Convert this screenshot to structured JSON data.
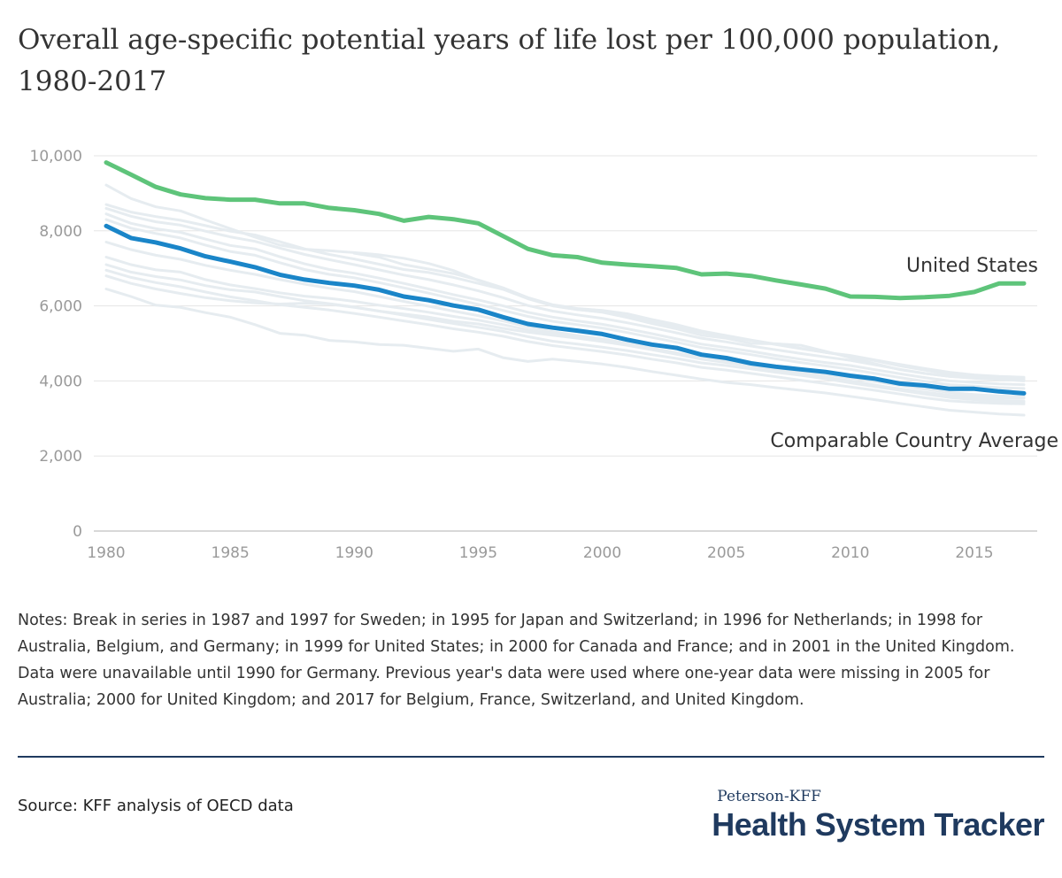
{
  "header": {
    "title": "Overall age-specific potential years of life lost per 100,000 population, 1980-2017"
  },
  "colors": {
    "us": "#5ec47a",
    "average": "#1a85c8",
    "comparable_countries": "#e6ecf0",
    "grid": "#e5e5e5",
    "axis": "#cccccc",
    "brand": "#1f3a5f"
  },
  "chart_data": {
    "type": "line",
    "x": [
      1980,
      1981,
      1982,
      1983,
      1984,
      1985,
      1986,
      1987,
      1988,
      1989,
      1990,
      1991,
      1992,
      1993,
      1994,
      1995,
      1996,
      1997,
      1998,
      1999,
      2000,
      2001,
      2002,
      2003,
      2004,
      2005,
      2006,
      2007,
      2008,
      2009,
      2010,
      2011,
      2012,
      2013,
      2014,
      2015,
      2016,
      2017
    ],
    "xlim": [
      1980,
      2017
    ],
    "x_ticks": [
      1980,
      1985,
      1990,
      1995,
      2000,
      2005,
      2010,
      2015
    ],
    "ylim": [
      0,
      10000
    ],
    "y_ticks": [
      0,
      2000,
      4000,
      6000,
      8000,
      10000
    ],
    "y_tick_labels": [
      "0",
      "2,000",
      "4,000",
      "6,000",
      "8,000",
      "10,000"
    ],
    "grid": true,
    "series": [
      {
        "name": "United States",
        "role": "highlight",
        "values": [
          9820,
          9500,
          9170,
          8970,
          8870,
          8830,
          8830,
          8730,
          8730,
          8610,
          8550,
          8450,
          8270,
          8370,
          8310,
          8200,
          7860,
          7520,
          7350,
          7300,
          7150,
          7100,
          7060,
          7010,
          6840,
          6860,
          6800,
          6680,
          6570,
          6460,
          6250,
          6240,
          6210,
          6230,
          6270,
          6370,
          6600,
          6600
        ]
      },
      {
        "name": "Comparable Country Average",
        "role": "highlight",
        "values": [
          8130,
          7810,
          7690,
          7530,
          7320,
          7180,
          7030,
          6830,
          6700,
          6610,
          6540,
          6430,
          6250,
          6150,
          6010,
          5900,
          5700,
          5520,
          5420,
          5340,
          5250,
          5100,
          4970,
          4880,
          4700,
          4610,
          4470,
          4380,
          4310,
          4240,
          4140,
          4060,
          3930,
          3880,
          3790,
          3790,
          3720,
          3670
        ]
      },
      {
        "role": "background",
        "values": [
          9220,
          8860,
          8640,
          8530,
          8290,
          8060,
          7830,
          7620,
          7510,
          7470,
          7420,
          7360,
          7270,
          7130,
          6940,
          6680,
          6470,
          6220,
          6010,
          5900,
          5830,
          5690,
          5530,
          5390,
          5220,
          5140,
          5000,
          4990,
          4950,
          4790,
          4620,
          4460,
          4300,
          4200,
          4120,
          4080,
          4050,
          4000
        ]
      },
      {
        "role": "background",
        "values": [
          8700,
          8500,
          8380,
          8280,
          8140,
          7990,
          7890,
          7710,
          7520,
          7370,
          7250,
          7110,
          6970,
          6890,
          6760,
          6600,
          6440,
          6190,
          6000,
          5900,
          5840,
          5720,
          5590,
          5440,
          5290,
          5190,
          5080,
          4970,
          4860,
          4760,
          4680,
          4560,
          4440,
          4330,
          4230,
          4160,
          4120,
          4100
        ]
      },
      {
        "role": "background",
        "values": [
          8600,
          8390,
          8240,
          8150,
          7990,
          7840,
          7720,
          7540,
          7370,
          7230,
          7100,
          6960,
          6820,
          6700,
          6560,
          6400,
          6220,
          6010,
          5860,
          5760,
          5670,
          5550,
          5420,
          5280,
          5140,
          5040,
          4930,
          4830,
          4730,
          4640,
          4550,
          4430,
          4310,
          4200,
          4120,
          4070,
          4040,
          4020
        ]
      },
      {
        "role": "background",
        "values": [
          8450,
          8200,
          8060,
          7960,
          7780,
          7610,
          7520,
          7310,
          7120,
          6970,
          6870,
          6740,
          6600,
          6450,
          6300,
          6160,
          6000,
          5830,
          5700,
          5600,
          5510,
          5390,
          5260,
          5120,
          4980,
          4890,
          4790,
          4680,
          4580,
          4490,
          4410,
          4300,
          4190,
          4090,
          4000,
          3960,
          3920,
          3900
        ]
      },
      {
        "role": "background",
        "values": [
          8300,
          8070,
          7930,
          7810,
          7620,
          7450,
          7350,
          7150,
          6970,
          6840,
          6750,
          6620,
          6480,
          6340,
          6190,
          6040,
          5880,
          5720,
          5590,
          5500,
          5410,
          5290,
          5160,
          5030,
          4890,
          4800,
          4700,
          4590,
          4490,
          4400,
          4310,
          4200,
          4090,
          3990,
          3900,
          3860,
          3820,
          3800
        ]
      },
      {
        "role": "background",
        "values": [
          null,
          null,
          null,
          null,
          null,
          null,
          null,
          null,
          null,
          null,
          7400,
          7300,
          7100,
          6980,
          6860,
          6690,
          6480,
          6220,
          6030,
          5930,
          5880,
          5790,
          5640,
          5500,
          5330,
          5210,
          5090,
          4980,
          4870,
          4760,
          4660,
          4540,
          4400,
          4290,
          4180,
          4120,
          4090,
          4060
        ]
      },
      {
        "role": "background",
        "values": [
          7300,
          7100,
          6960,
          6900,
          6700,
          6560,
          6460,
          6350,
          6260,
          6200,
          6120,
          6020,
          5930,
          5830,
          5720,
          5620,
          5500,
          5360,
          5250,
          5170,
          5090,
          4980,
          4870,
          4750,
          4610,
          4540,
          4440,
          4350,
          4260,
          4170,
          4080,
          3980,
          3880,
          3780,
          3690,
          3640,
          3600,
          3580
        ]
      },
      {
        "role": "background",
        "values": [
          7100,
          6900,
          6780,
          6690,
          6540,
          6430,
          6370,
          6250,
          6140,
          6060,
          5970,
          5860,
          5750,
          5640,
          5530,
          5430,
          5320,
          5180,
          5060,
          4980,
          4900,
          4810,
          4700,
          4600,
          4480,
          4410,
          4320,
          4230,
          4150,
          4060,
          3970,
          3880,
          3790,
          3700,
          3620,
          3580,
          3550,
          3540
        ]
      },
      {
        "role": "background",
        "values": [
          6950,
          6760,
          6620,
          6510,
          6370,
          6240,
          6140,
          6030,
          5960,
          5890,
          5800,
          5700,
          5600,
          5500,
          5390,
          5300,
          5190,
          5050,
          4940,
          4860,
          4780,
          4690,
          4580,
          4480,
          4360,
          4290,
          4200,
          4110,
          4020,
          3930,
          3840,
          3750,
          3650,
          3550,
          3470,
          3430,
          3400,
          3390
        ]
      },
      {
        "role": "background",
        "values": [
          6800,
          6600,
          6450,
          6330,
          6220,
          6140,
          6080,
          6050,
          6070,
          6050,
          5960,
          5860,
          5780,
          5700,
          5590,
          5520,
          5400,
          5300,
          5220,
          5140,
          5050,
          4950,
          4830,
          4710,
          4580,
          4490,
          4390,
          4280,
          4170,
          4060,
          3950,
          3850,
          3750,
          3650,
          3560,
          3500,
          3460,
          3440
        ]
      },
      {
        "role": "background",
        "values": [
          6450,
          6250,
          6020,
          5960,
          5820,
          5700,
          5500,
          5270,
          5220,
          5080,
          5040,
          4970,
          4950,
          4870,
          4790,
          4850,
          4620,
          4520,
          4580,
          4520,
          4450,
          4360,
          4250,
          4150,
          4050,
          3960,
          3900,
          3820,
          3750,
          3680,
          3590,
          3500,
          3400,
          3310,
          3220,
          3170,
          3120,
          3090
        ]
      },
      {
        "role": "background",
        "values": [
          7700,
          7500,
          7350,
          7240,
          7080,
          6950,
          6840,
          6700,
          6580,
          6470,
          6380,
          6250,
          6120,
          5990,
          5860,
          5740,
          5600,
          5440,
          5310,
          5210,
          5120,
          5000,
          4870,
          4740,
          4600,
          4510,
          4410,
          4300,
          4200,
          4100,
          4000,
          3890,
          3780,
          3670,
          3580,
          3520,
          3480,
          3460
        ]
      }
    ],
    "annotations": [
      {
        "text": "United States"
      },
      {
        "text": "Comparable Country Average"
      }
    ]
  },
  "footer": {
    "notes": "Notes: Break in series in 1987 and 1997 for Sweden; in 1995 for Japan and Switzerland; in 1996 for Netherlands; in 1998 for Australia, Belgium, and Germany; in 1999 for United States; in 2000 for Canada and France; and in 2001 in the United Kingdom. Data were unavailable until 1990 for Germany. Previous year's data were used where one-year data were missing in 2005 for Australia; 2000 for United Kingdom; and 2017 for Belgium, France, Switzerland, and United Kingdom.",
    "source": "Source: KFF analysis of OECD data",
    "brand_top": "Peterson-KFF",
    "brand_main": "Health System Tracker"
  }
}
